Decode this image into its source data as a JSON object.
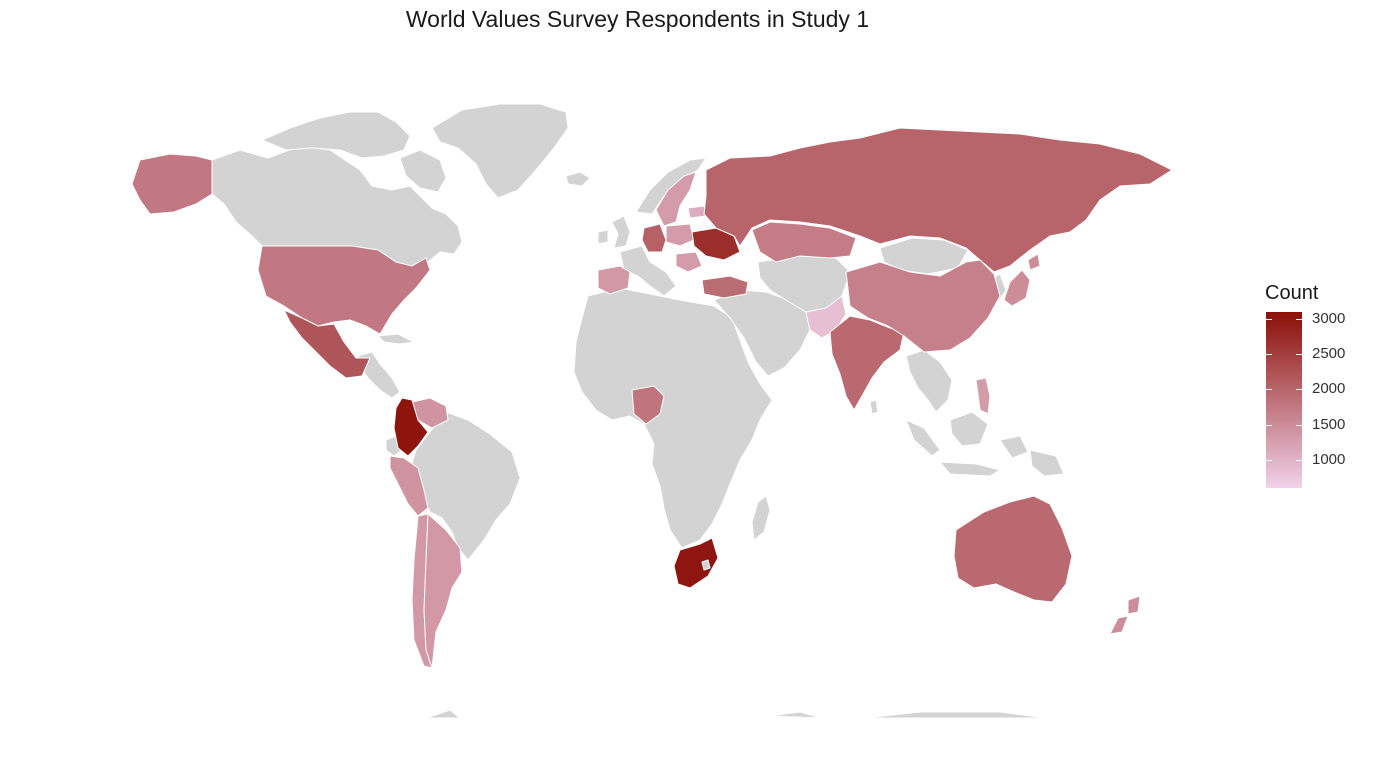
{
  "title": "World Values Survey Respondents in Study 1",
  "legend": {
    "title": "Count",
    "min": 600,
    "max": 3100,
    "ticks": [
      "1000",
      "1500",
      "2000",
      "2500",
      "3000"
    ],
    "tick_values": [
      1000,
      1500,
      2000,
      2500,
      3000
    ],
    "color_low": "#f0d2ea",
    "color_high": "#8b0f07"
  },
  "colors": {
    "no_data": "#d3d3d3",
    "borders": "#ffffff",
    "background": "#ffffff"
  },
  "countries": [
    {
      "name": "Colombia",
      "count": 3025
    },
    {
      "name": "South Africa",
      "count": 3005
    },
    {
      "name": "Ukraine",
      "count": 2700
    },
    {
      "name": "Mexico",
      "count": 2200
    },
    {
      "name": "Germany",
      "count": 2050
    },
    {
      "name": "Russia",
      "count": 2000
    },
    {
      "name": "Australia",
      "count": 1950
    },
    {
      "name": "India",
      "count": 1950
    },
    {
      "name": "Turkey",
      "count": 1900
    },
    {
      "name": "Nigeria",
      "count": 1800
    },
    {
      "name": "Kazakhstan",
      "count": 1700
    },
    {
      "name": "United States",
      "count": 1750
    },
    {
      "name": "Alaska (United States)",
      "count": 1750
    },
    {
      "name": "China",
      "count": 1650
    },
    {
      "name": "Peru",
      "count": 1400
    },
    {
      "name": "Venezuela",
      "count": 1400
    },
    {
      "name": "Argentina",
      "count": 1350
    },
    {
      "name": "Chile",
      "count": 1350
    },
    {
      "name": "Spain",
      "count": 1350
    },
    {
      "name": "Sweden",
      "count": 1300
    },
    {
      "name": "Romania",
      "count": 1300
    },
    {
      "name": "Poland",
      "count": 1300
    },
    {
      "name": "New Zealand",
      "count": 1500
    },
    {
      "name": "Japan",
      "count": 1500
    },
    {
      "name": "Philippines",
      "count": 1300
    },
    {
      "name": "Estonia",
      "count": 1100
    },
    {
      "name": "Pakistan",
      "count": 850
    }
  ]
}
